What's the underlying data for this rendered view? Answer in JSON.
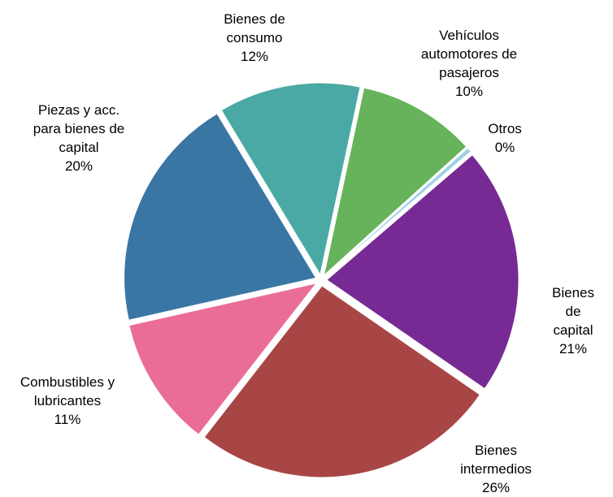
{
  "chart_data": {
    "type": "pie",
    "categories": [
      "Bienes de\nconsumo",
      "Vehículos\nautomotores de\npasajeros",
      "Otros",
      "Bienes de\ncapital",
      "Bienes\nintermedios",
      "Combustibles y\nlubricantes",
      "Piezas y acc.\npara bienes de\ncapital"
    ],
    "values": [
      12,
      10,
      0.4,
      21,
      26,
      11,
      20
    ],
    "value_labels": [
      "12%",
      "10%",
      "0%",
      "21%",
      "26%",
      "11%",
      "20%"
    ],
    "colors": [
      "#4aa9a4",
      "#67b35b",
      "#9fd1e3",
      "#772a93",
      "#a84646",
      "#ea6d97",
      "#3a76a4"
    ]
  }
}
